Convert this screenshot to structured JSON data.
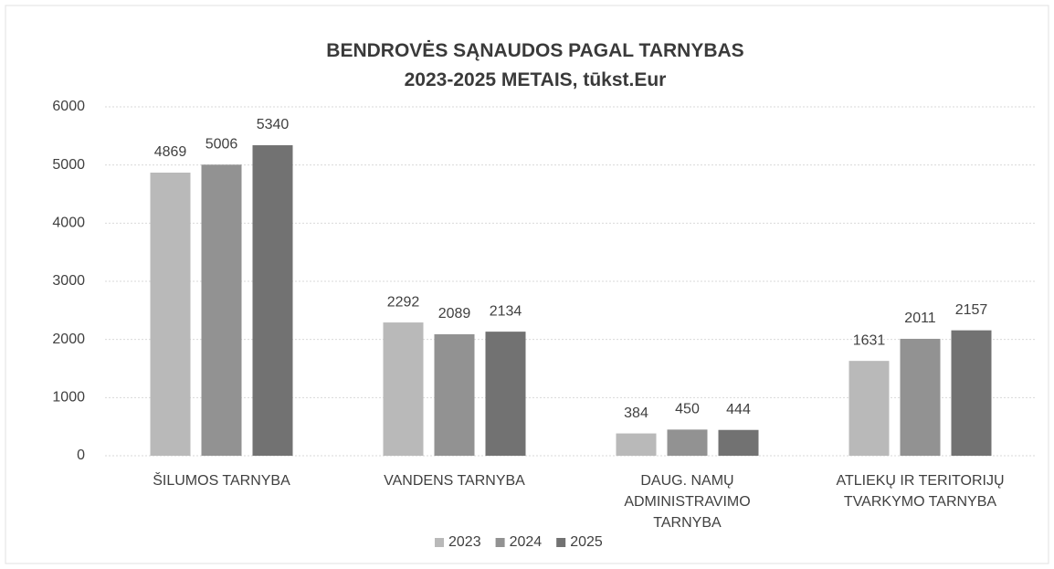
{
  "chart_data": {
    "type": "bar",
    "title": "BENDROVĖS SĄNAUDOS PAGAL TARNYBAS\n2023-2025 METAIS, tūkst.Eur",
    "categories": [
      "ŠILUMOS TARNYBA",
      "VANDENS TARNYBA",
      "DAUG. NAMŲ\nADMINISTRAVIMO\nTARNYBA",
      "ATLIEKŲ IR TERITORIJŲ\nTVARKYMO TARNYBA"
    ],
    "series": [
      {
        "name": "2023",
        "color": "#b9b9b9",
        "values": [
          4869,
          2292,
          384,
          1631
        ]
      },
      {
        "name": "2024",
        "color": "#929292",
        "values": [
          5006,
          2089,
          450,
          2011
        ]
      },
      {
        "name": "2025",
        "color": "#727272",
        "values": [
          5340,
          2134,
          444,
          2157
        ]
      }
    ],
    "ylim": [
      0,
      6000
    ],
    "yticks": [
      0,
      1000,
      2000,
      3000,
      4000,
      5000,
      6000
    ],
    "grid": true,
    "legend": "bottom"
  }
}
